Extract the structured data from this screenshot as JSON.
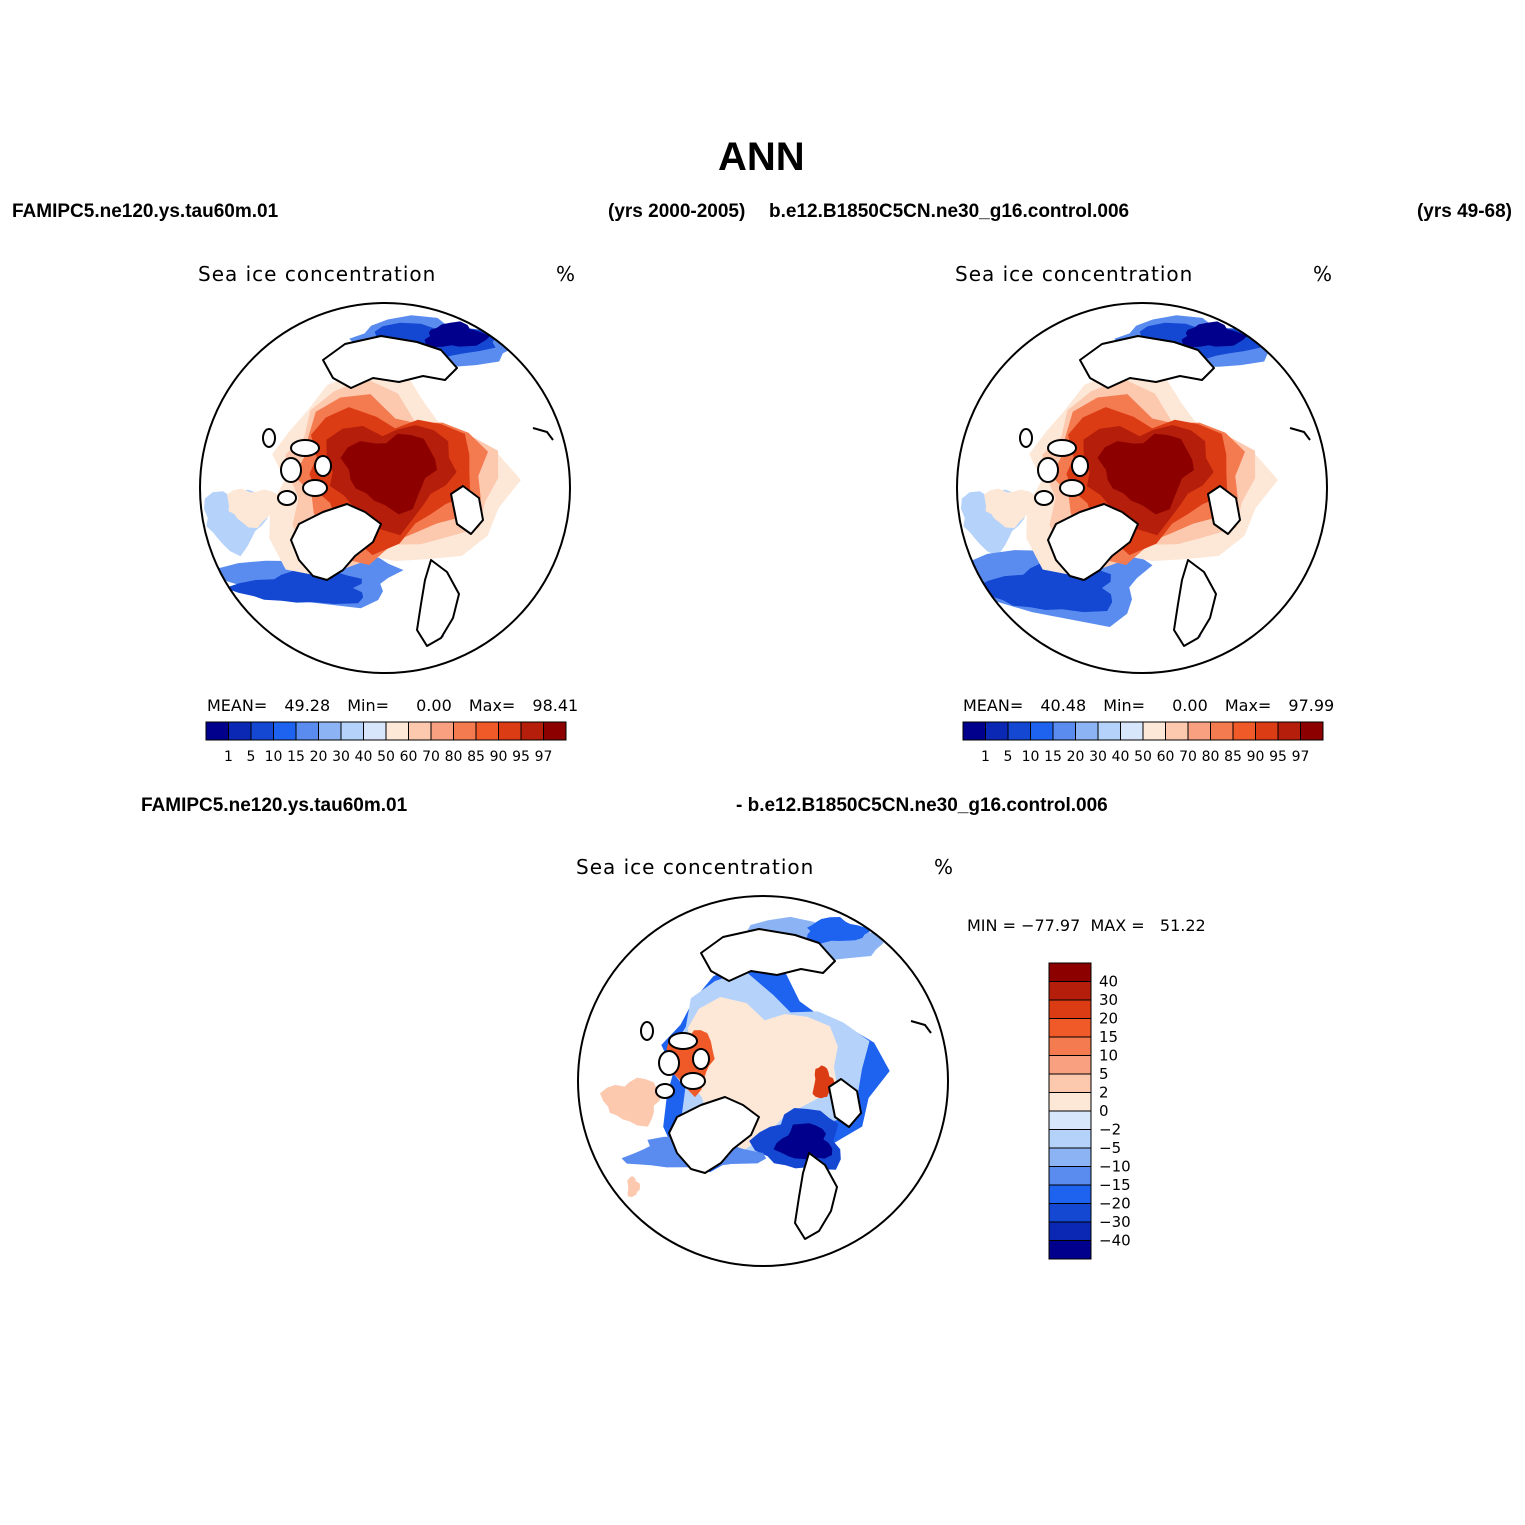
{
  "main_title": "ANN",
  "header": {
    "case1_name": "FAMIPC5.ne120.ys.tau60m.01",
    "case1_years": "(yrs 2000-2005)",
    "case2_name": "b.e12.B1850C5CN.ne30_g16.control.006",
    "case2_years": "(yrs 49-68)",
    "diff_left": "FAMIPC5.ne120.ys.tau60m.01",
    "diff_right": "- b.e12.B1850C5CN.ne30_g16.control.006"
  },
  "colors": {
    "abs_scale": [
      "#00008c",
      "#0a28b4",
      "#1448d2",
      "#1e62f0",
      "#5a8cf0",
      "#8cb4f5",
      "#b4d2fa",
      "#d7e6fa",
      "#fde8d8",
      "#fcc8ae",
      "#f8a080",
      "#f47a50",
      "#f05a28",
      "#dc3c14",
      "#b41e0a",
      "#8c0000"
    ],
    "diff_scale": [
      "#00008c",
      "#0a28b4",
      "#1448d2",
      "#1e62f0",
      "#5a8cf0",
      "#8cb4f5",
      "#b4d2fa",
      "#d7e6fa",
      "#fde8d8",
      "#fcc8ae",
      "#f8a080",
      "#f47a50",
      "#f05a28",
      "#dc3c14",
      "#b41e0a",
      "#8c0000"
    ]
  },
  "chart_data": [
    {
      "type": "heatmap",
      "projection": "north-polar-stereographic",
      "title": "Sea ice concentration",
      "units": "%",
      "case": "FAMIPC5.ne120.ys.tau60m.01",
      "mean_label": "MEAN=",
      "mean": "49.28",
      "min_label": "Min=",
      "min": "0.00",
      "max_label": "Max=",
      "max": "98.41",
      "levels": [
        "1",
        "5",
        "10",
        "15",
        "20",
        "30",
        "40",
        "50",
        "60",
        "70",
        "80",
        "85",
        "90",
        "95",
        "97"
      ],
      "colorbar": "horizontal"
    },
    {
      "type": "heatmap",
      "projection": "north-polar-stereographic",
      "title": "Sea ice concentration",
      "units": "%",
      "case": "b.e12.B1850C5CN.ne30_g16.control.006",
      "mean_label": "MEAN=",
      "mean": "40.48",
      "min_label": "Min=",
      "min": "0.00",
      "max_label": "Max=",
      "max": "97.99",
      "levels": [
        "1",
        "5",
        "10",
        "15",
        "20",
        "30",
        "40",
        "50",
        "60",
        "70",
        "80",
        "85",
        "90",
        "95",
        "97"
      ],
      "colorbar": "horizontal"
    },
    {
      "type": "heatmap",
      "projection": "north-polar-stereographic",
      "title": "Sea ice concentration",
      "units": "%",
      "case": "difference",
      "minmax_text": "MIN = −77.97  MAX =   51.22",
      "levels": [
        "40",
        "30",
        "20",
        "15",
        "10",
        "5",
        "2",
        "0",
        "−2",
        "−5",
        "−10",
        "−15",
        "−20",
        "−30",
        "−40"
      ],
      "colorbar": "vertical"
    }
  ]
}
